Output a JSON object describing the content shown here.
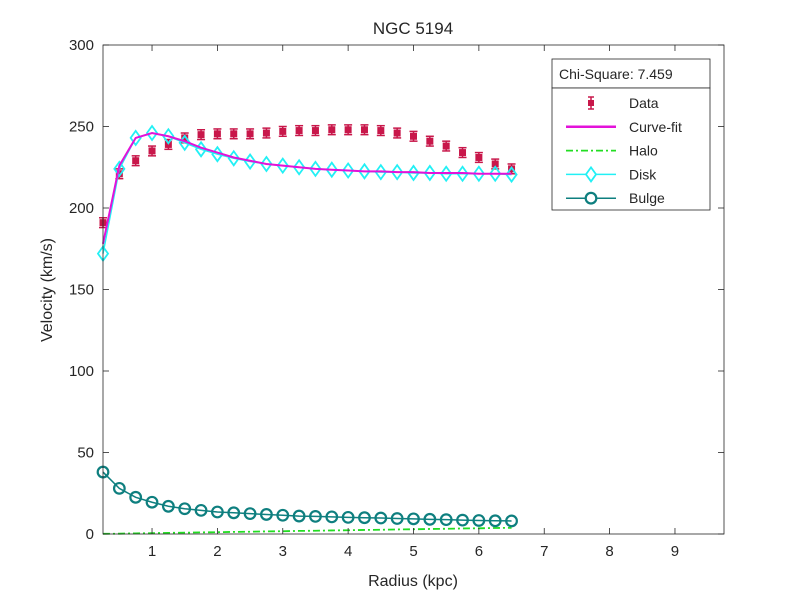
{
  "chart_data": {
    "type": "line",
    "title": "NGC 5194",
    "xlabel": "Radius (kpc)",
    "ylabel": "Velocity (km/s)",
    "xlim": [
      0.25,
      9.75
    ],
    "ylim": [
      0,
      300
    ],
    "xticks": [
      1,
      2,
      3,
      4,
      5,
      6,
      7,
      8,
      9
    ],
    "yticks": [
      0,
      50,
      100,
      150,
      200,
      250,
      300
    ],
    "grid": false,
    "legend_position": "top-right",
    "annotation": "Chi-Square: 7.459",
    "series": [
      {
        "name": "Data",
        "style": "errorbar",
        "color": "#c8174a",
        "x": [
          0.25,
          0.5,
          0.75,
          1.0,
          1.25,
          1.5,
          1.75,
          2.0,
          2.25,
          2.5,
          2.75,
          3.0,
          3.25,
          3.5,
          3.75,
          4.0,
          4.25,
          4.5,
          4.75,
          5.0,
          5.25,
          5.5,
          5.75,
          6.0,
          6.25,
          6.5
        ],
        "y": [
          191,
          221,
          229,
          235,
          239,
          243,
          245,
          245.5,
          245.5,
          245.5,
          246,
          247,
          247.5,
          247.5,
          248,
          248,
          248,
          247.5,
          246,
          244,
          241,
          238,
          234,
          231,
          227,
          224
        ],
        "err": [
          3,
          3,
          3,
          3,
          3,
          3,
          3,
          3,
          3,
          3,
          3,
          3,
          3,
          3,
          3,
          3,
          3,
          3,
          3,
          3,
          3,
          3,
          3,
          3,
          3,
          3
        ]
      },
      {
        "name": "Curve-fit",
        "style": "solid",
        "color": "#e312d9",
        "x": [
          0.25,
          0.5,
          0.75,
          1.0,
          1.25,
          1.5,
          1.75,
          2.0,
          2.25,
          2.5,
          2.75,
          3.0,
          3.25,
          3.5,
          3.75,
          4.0,
          4.25,
          4.5,
          4.75,
          5.0,
          5.25,
          5.5,
          5.75,
          6.0,
          6.25,
          6.5
        ],
        "y": [
          178,
          226,
          243,
          246,
          244,
          241,
          237,
          234,
          231,
          229,
          227,
          226,
          225,
          224,
          223.5,
          223,
          222.5,
          222.5,
          222,
          222,
          221.5,
          221.5,
          221.5,
          221,
          221,
          221
        ]
      },
      {
        "name": "Halo",
        "style": "dashdot",
        "color": "#22dd22",
        "x": [
          0.25,
          0.5,
          0.75,
          1.0,
          1.25,
          1.5,
          1.75,
          2.0,
          2.25,
          2.5,
          2.75,
          3.0,
          3.25,
          3.5,
          3.75,
          4.0,
          4.25,
          4.5,
          4.75,
          5.0,
          5.25,
          5.5,
          5.75,
          6.0,
          6.25,
          6.5
        ],
        "y": [
          0.1,
          0.2,
          0.4,
          0.5,
          0.7,
          0.8,
          1.0,
          1.1,
          1.3,
          1.4,
          1.6,
          1.7,
          1.9,
          2.0,
          2.2,
          2.3,
          2.5,
          2.6,
          2.8,
          2.9,
          3.1,
          3.2,
          3.4,
          3.5,
          3.7,
          3.8
        ]
      },
      {
        "name": "Disk",
        "style": "diamond",
        "color": "#22f0f5",
        "x": [
          0.25,
          0.5,
          0.75,
          1.0,
          1.25,
          1.5,
          1.75,
          2.0,
          2.25,
          2.5,
          2.75,
          3.0,
          3.25,
          3.5,
          3.75,
          4.0,
          4.25,
          4.5,
          4.75,
          5.0,
          5.25,
          5.5,
          5.75,
          6.0,
          6.25,
          6.5
        ],
        "y": [
          172,
          224,
          243,
          246,
          244,
          240,
          236,
          233,
          230.5,
          228.5,
          227,
          226,
          225,
          224,
          223.5,
          223,
          222.5,
          222,
          222,
          221.5,
          221.5,
          221,
          221,
          221,
          221,
          220.5
        ]
      },
      {
        "name": "Bulge",
        "style": "circle",
        "color": "#0e7f7f",
        "x": [
          0.25,
          0.5,
          0.75,
          1.0,
          1.25,
          1.5,
          1.75,
          2.0,
          2.25,
          2.5,
          2.75,
          3.0,
          3.25,
          3.5,
          3.75,
          4.0,
          4.25,
          4.5,
          4.75,
          5.0,
          5.25,
          5.5,
          5.75,
          6.0,
          6.25,
          6.5
        ],
        "y": [
          38,
          28,
          22.5,
          19.5,
          17,
          15.5,
          14.5,
          13.5,
          13,
          12.5,
          12,
          11.5,
          11,
          10.8,
          10.5,
          10.2,
          10,
          9.8,
          9.5,
          9.3,
          9,
          8.8,
          8.5,
          8.3,
          8.1,
          8
        ]
      }
    ]
  }
}
